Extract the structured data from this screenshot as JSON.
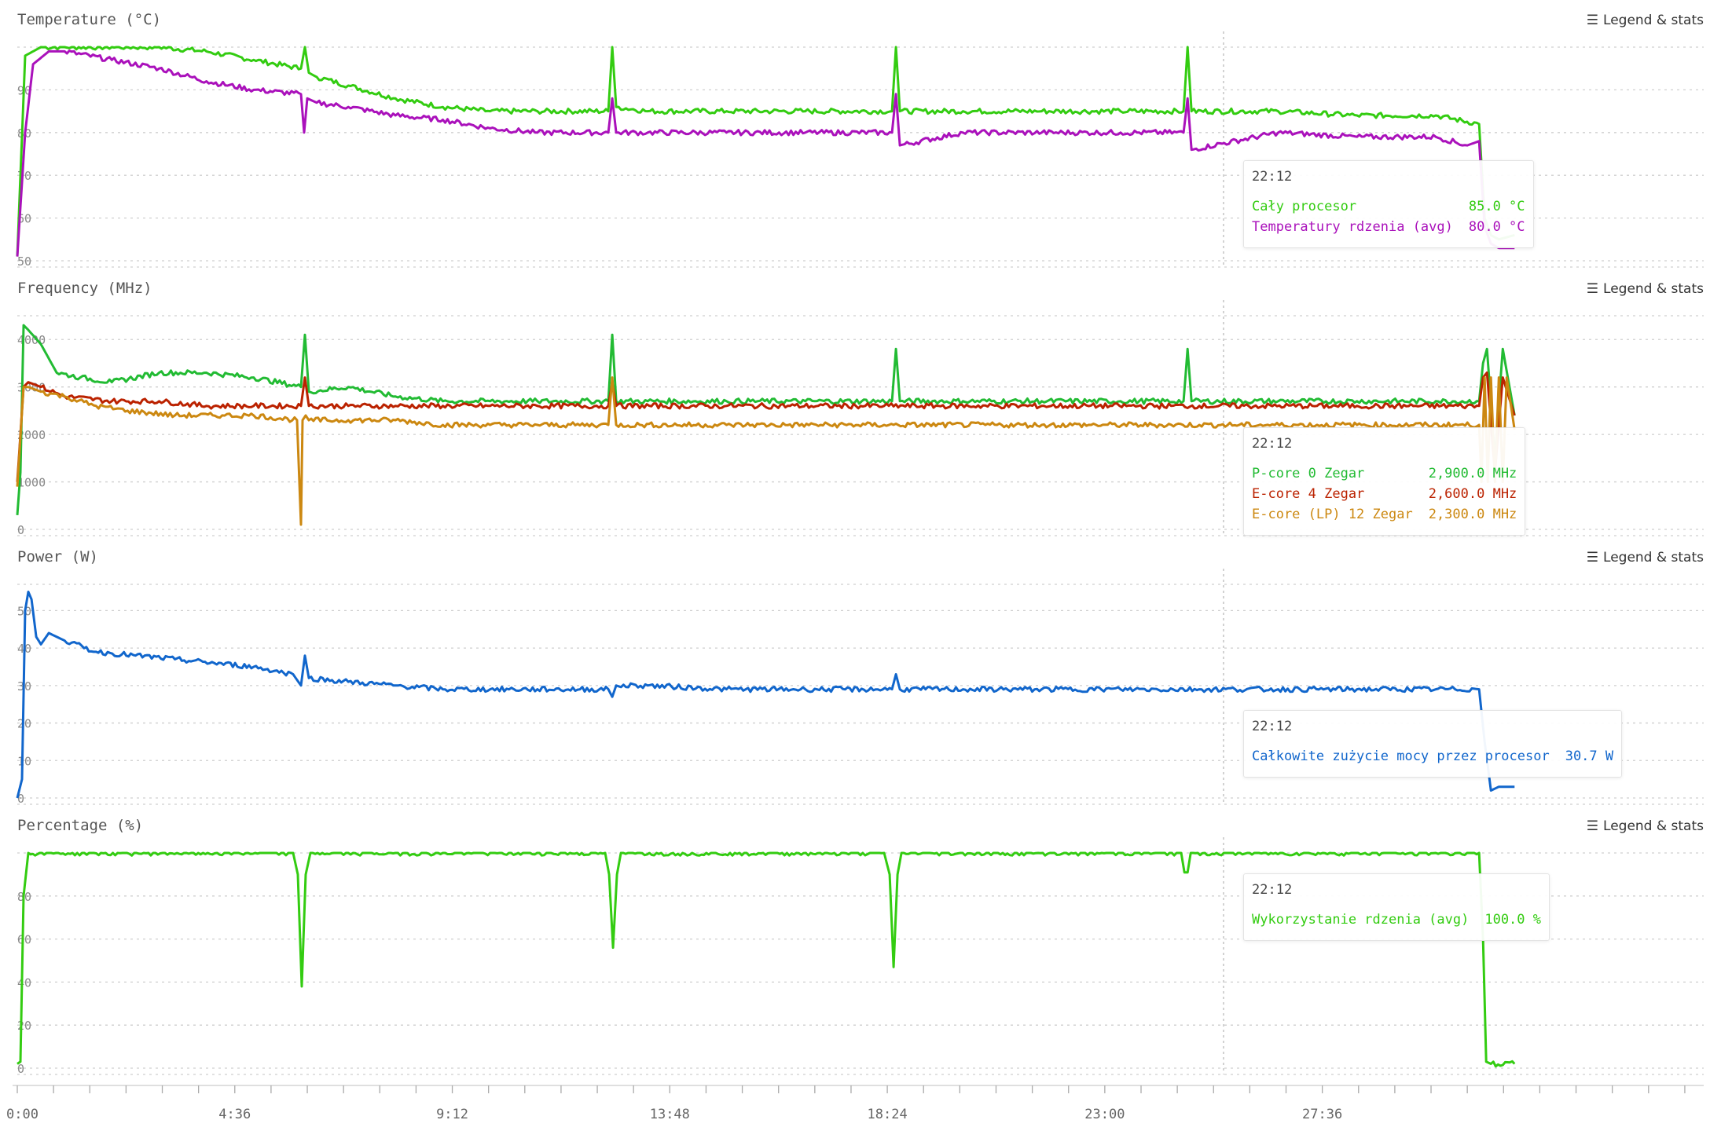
{
  "cursor_time": "22:12",
  "legend_label": "Legend & stats",
  "x_axis": {
    "min": 0,
    "max": 2140,
    "ticks": [
      "0:00",
      "4:36",
      "9:12",
      "13:48",
      "18:24",
      "23:00",
      "27:36"
    ],
    "tick_values": [
      0,
      276,
      552,
      828,
      1104,
      1380,
      1656
    ]
  },
  "colors": {
    "green": "#33cc11",
    "magenta": "#aa11bb",
    "p_green": "#22bb33",
    "red": "#bb2200",
    "orange": "#cc8811",
    "blue": "#1166cc"
  },
  "chart_data": [
    {
      "type": "line",
      "title": "Temperature (°C)",
      "ylim": [
        50,
        100
      ],
      "yticks": [
        "50",
        "60",
        "70",
        "80",
        "90"
      ],
      "ytick_values": [
        50,
        60,
        70,
        80,
        90
      ],
      "series": [
        {
          "name": "Cały procesor",
          "color": "#33cc11",
          "x": [
            0,
            10,
            30,
            60,
            120,
            180,
            240,
            300,
            360,
            365,
            370,
            380,
            420,
            480,
            540,
            600,
            660,
            750,
            755,
            760,
            800,
            900,
            1000,
            1110,
            1115,
            1120,
            1200,
            1300,
            1400,
            1480,
            1485,
            1490,
            1600,
            1700,
            1800,
            1855,
            1862,
            1870,
            1880,
            1900
          ],
          "y": [
            51,
            98,
            100,
            100,
            100,
            100,
            99,
            97,
            95,
            100,
            94,
            93,
            91,
            88,
            86,
            85,
            85,
            85,
            100,
            86,
            85,
            85,
            85,
            85,
            100,
            85,
            85,
            85,
            85,
            85,
            100,
            85,
            85,
            84,
            84,
            82,
            60,
            56,
            55,
            56
          ]
        },
        {
          "name": "Temperatury rdzenia (avg)",
          "color": "#aa11bb",
          "x": [
            0,
            10,
            20,
            40,
            60,
            120,
            180,
            240,
            300,
            360,
            364,
            368,
            380,
            420,
            480,
            540,
            600,
            660,
            750,
            755,
            760,
            800,
            900,
            1000,
            1110,
            1115,
            1120,
            1200,
            1300,
            1400,
            1480,
            1485,
            1490,
            1600,
            1700,
            1800,
            1840,
            1855,
            1862,
            1870,
            1880,
            1900
          ],
          "y": [
            51,
            80,
            96,
            99,
            99,
            97,
            95,
            92,
            90,
            89,
            80,
            88,
            87,
            86,
            84,
            83,
            81,
            80,
            80,
            88,
            80,
            80,
            80,
            80,
            80,
            89,
            77,
            80,
            80,
            80,
            80,
            88,
            76,
            80,
            79,
            79,
            77,
            78,
            58,
            54,
            53,
            53
          ]
        }
      ]
    },
    {
      "type": "line",
      "title": "Frequency (MHz)",
      "ylim": [
        0,
        4500
      ],
      "yticks": [
        "0",
        "1000",
        "2000",
        "3000",
        "4000"
      ],
      "ytick_values": [
        0,
        1000,
        2000,
        3000,
        4000
      ],
      "series": [
        {
          "name": "P-core 0 Zegar",
          "color": "#22bb33",
          "x": [
            0,
            4,
            8,
            14,
            30,
            50,
            80,
            120,
            180,
            240,
            300,
            360,
            365,
            370,
            420,
            480,
            540,
            600,
            660,
            750,
            755,
            760,
            800,
            900,
            1000,
            1110,
            1115,
            1120,
            1200,
            1300,
            1400,
            1480,
            1485,
            1490,
            1600,
            1700,
            1800,
            1855,
            1860,
            1865,
            1875,
            1885,
            1900
          ],
          "y": [
            300,
            1200,
            4300,
            4200,
            3900,
            3300,
            3200,
            3100,
            3300,
            3300,
            3200,
            3000,
            4100,
            2900,
            3000,
            2800,
            2700,
            2700,
            2700,
            2700,
            4100,
            2700,
            2700,
            2700,
            2700,
            2700,
            3800,
            2700,
            2700,
            2700,
            2700,
            2700,
            3800,
            2700,
            2700,
            2700,
            2700,
            2700,
            3500,
            3800,
            1500,
            3800,
            2400
          ]
        },
        {
          "name": "E-core 4 Zegar",
          "color": "#bb2200",
          "x": [
            0,
            8,
            14,
            30,
            60,
            120,
            180,
            240,
            300,
            360,
            365,
            370,
            420,
            480,
            540,
            600,
            660,
            750,
            755,
            760,
            900,
            1100,
            1300,
            1500,
            1700,
            1855,
            1860,
            1865,
            1875,
            1885,
            1900
          ],
          "y": [
            1000,
            3000,
            3100,
            3000,
            2800,
            2700,
            2700,
            2600,
            2600,
            2600,
            3200,
            2600,
            2600,
            2600,
            2600,
            2600,
            2600,
            2600,
            3100,
            2600,
            2600,
            2600,
            2600,
            2600,
            2600,
            2600,
            3200,
            3300,
            1200,
            3200,
            2400
          ]
        },
        {
          "name": "E-core (LP) 12 Zegar",
          "color": "#cc8811",
          "x": [
            0,
            8,
            14,
            30,
            60,
            100,
            140,
            200,
            260,
            300,
            355,
            360,
            362,
            366,
            370,
            420,
            480,
            540,
            600,
            660,
            750,
            755,
            760,
            900,
            1100,
            1300,
            1500,
            1700,
            1855,
            1858,
            1862,
            1866,
            1870,
            1875,
            1880,
            1885,
            1890,
            1900
          ],
          "y": [
            900,
            3000,
            3000,
            2900,
            2800,
            2600,
            2500,
            2400,
            2400,
            2400,
            2300,
            100,
            2300,
            2400,
            2300,
            2300,
            2300,
            2200,
            2200,
            2200,
            2200,
            3200,
            2200,
            2200,
            2200,
            2200,
            2200,
            2200,
            2200,
            1000,
            3200,
            1000,
            3200,
            1000,
            3200,
            1000,
            3200,
            2100
          ]
        }
      ]
    },
    {
      "type": "line",
      "title": "Power (W)",
      "ylim": [
        0,
        57
      ],
      "yticks": [
        "0",
        "10",
        "20",
        "30",
        "40",
        "50"
      ],
      "ytick_values": [
        0,
        10,
        20,
        30,
        40,
        50
      ],
      "series": [
        {
          "name": "Całkowite zużycie mocy przez procesor",
          "color": "#1166cc",
          "x": [
            0,
            6,
            10,
            14,
            18,
            24,
            30,
            40,
            60,
            100,
            150,
            200,
            250,
            300,
            350,
            360,
            365,
            370,
            420,
            480,
            540,
            600,
            660,
            750,
            755,
            760,
            800,
            900,
            1000,
            1110,
            1115,
            1120,
            1200,
            1300,
            1400,
            1500,
            1600,
            1700,
            1800,
            1855,
            1862,
            1870,
            1880,
            1900
          ],
          "y": [
            0,
            5,
            50,
            55,
            53,
            43,
            41,
            44,
            42,
            39,
            38,
            37,
            36,
            35,
            33,
            30,
            38,
            32,
            31,
            30,
            29,
            29,
            29,
            29,
            27,
            30,
            30,
            29,
            29,
            29,
            33,
            29,
            29,
            29,
            29,
            29,
            29,
            29,
            29,
            29,
            15,
            2,
            3,
            3
          ]
        }
      ]
    },
    {
      "type": "line",
      "title": "Percentage (%)",
      "ylim": [
        0,
        100
      ],
      "yticks": [
        "0",
        "20",
        "40",
        "60",
        "80"
      ],
      "ytick_values": [
        0,
        20,
        40,
        60,
        80
      ],
      "series": [
        {
          "name": "Wykorzystanie rdzenia (avg)",
          "color": "#33cc11",
          "x": [
            0,
            4,
            8,
            14,
            40,
            350,
            356,
            361,
            366,
            372,
            600,
            746,
            751,
            756,
            761,
            766,
            1100,
            1107,
            1112,
            1117,
            1122,
            1400,
            1477,
            1481,
            1485,
            1489,
            1800,
            1855,
            1860,
            1864,
            1870,
            1900
          ],
          "y": [
            2,
            3,
            80,
            100,
            100,
            100,
            90,
            38,
            90,
            100,
            100,
            100,
            90,
            56,
            90,
            100,
            100,
            90,
            47,
            90,
            100,
            100,
            100,
            91,
            91,
            100,
            100,
            100,
            60,
            3,
            2,
            2
          ]
        }
      ]
    }
  ],
  "tooltips": [
    {
      "rows": [
        {
          "label": "Cały procesor",
          "value": "85.0 °C",
          "color": "#33cc11"
        },
        {
          "label": "Temperatury rdzenia (avg)",
          "value": "80.0 °C",
          "color": "#aa11bb"
        }
      ]
    },
    {
      "rows": [
        {
          "label": "P-core 0 Zegar",
          "value": "2,900.0 MHz",
          "color": "#22bb33"
        },
        {
          "label": "E-core 4 Zegar",
          "value": "2,600.0 MHz",
          "color": "#bb2200"
        },
        {
          "label": "E-core (LP) 12 Zegar",
          "value": "2,300.0 MHz",
          "color": "#cc8811"
        }
      ]
    },
    {
      "rows": [
        {
          "label": "Całkowite zużycie mocy przez procesor",
          "value": "30.7 W",
          "color": "#1166cc"
        }
      ]
    },
    {
      "rows": [
        {
          "label": "Wykorzystanie rdzenia (avg)",
          "value": "100.0 %",
          "color": "#33cc11"
        }
      ]
    }
  ]
}
